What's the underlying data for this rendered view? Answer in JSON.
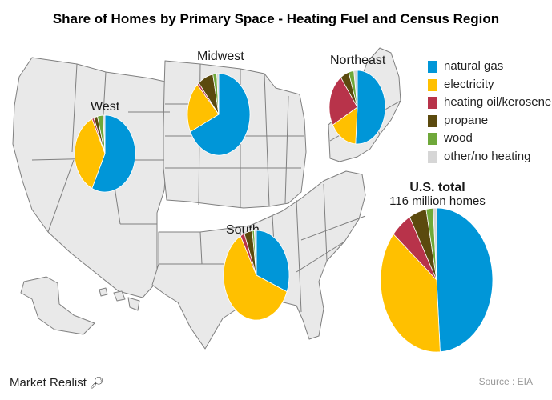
{
  "title": "Share of Homes by Primary Space - Heating Fuel and Census Region",
  "legend": [
    {
      "label": "natural gas",
      "color": "#0096D8"
    },
    {
      "label": "electricity",
      "color": "#FFC000"
    },
    {
      "label": "heating oil/kerosene",
      "color": "#B8334A"
    },
    {
      "label": "propane",
      "color": "#5B4A0E"
    },
    {
      "label": "wood",
      "color": "#6FA83A"
    },
    {
      "label": "other/no heating",
      "color": "#D6D6D6"
    }
  ],
  "us_total": {
    "title": "U.S. total",
    "subtitle": "116 million homes"
  },
  "source": "Source : EIA",
  "watermark": "Market Realist",
  "chart_data": {
    "type": "pie",
    "title": "Share of Homes by Primary Space - Heating Fuel and Census Region",
    "categories": [
      "natural gas",
      "electricity",
      "heating oil/kerosene",
      "propane",
      "wood",
      "other/no heating"
    ],
    "series": [
      {
        "name": "West",
        "values": [
          57,
          36,
          1,
          2,
          3,
          1
        ]
      },
      {
        "name": "Midwest",
        "values": [
          68,
          20,
          1,
          8,
          2,
          1
        ]
      },
      {
        "name": "Northeast",
        "values": [
          51,
          16,
          23,
          5,
          3,
          2
        ]
      },
      {
        "name": "South",
        "values": [
          31,
          61,
          2,
          4,
          1,
          1
        ]
      },
      {
        "name": "U.S. total",
        "values": [
          49,
          37,
          6,
          5,
          2,
          1
        ]
      }
    ]
  }
}
